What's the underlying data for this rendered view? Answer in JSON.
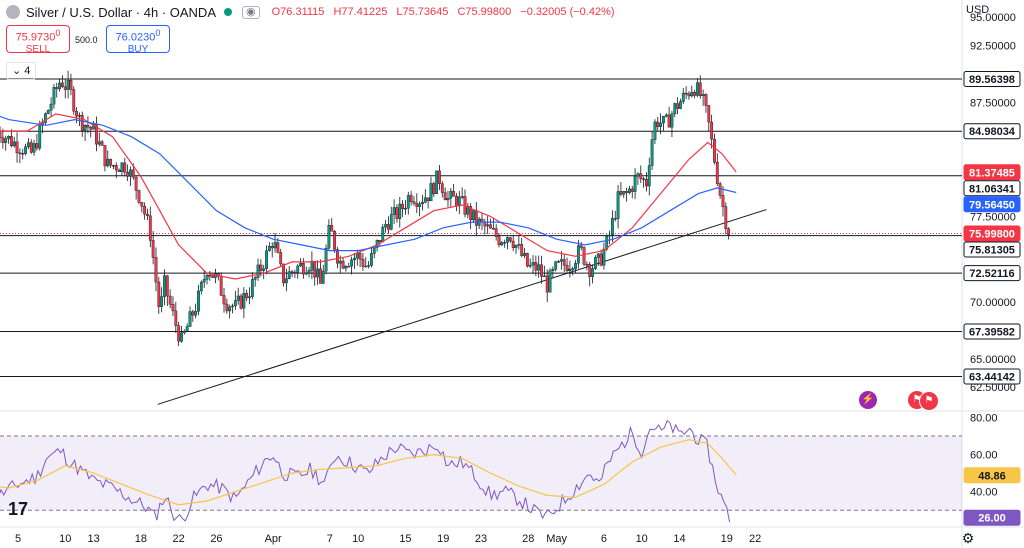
{
  "header": {
    "title": "Silver / U.S. Dollar · 4h · OANDA",
    "open": "O76.31115",
    "high": "H77.41225",
    "low": "L75.73645",
    "close": "C75.99800",
    "change": "−0.32005 (−0.42%)",
    "eye_icon": "eye-icon"
  },
  "trade": {
    "sell_price": "75.9730",
    "sell_price_sup": "0",
    "sell_label": "SELL",
    "quantity": "500.0",
    "buy_price": "76.0230",
    "buy_price_sup": "0",
    "buy_label": "BUY"
  },
  "indicators_toggle": "4",
  "currency": "USD",
  "colors": {
    "up": "#089981",
    "down": "#f23645",
    "ma_fast": "#f23645",
    "ma_slow": "#2962ff",
    "rsi": "#7e57c2",
    "rsi_ma": "#f7c548",
    "level": "#131722"
  },
  "chart_data": [
    {
      "type": "candlestick",
      "title": "Silver / U.S. Dollar · 4h · OANDA",
      "ylim": [
        60.5,
        96.5
      ],
      "y_ticks": [
        "95.00000",
        "92.50000",
        "87.50000",
        "77.50000",
        "70.00000",
        "65.00000",
        "62.50000"
      ],
      "x_ticks": [
        {
          "label": "5",
          "day": 5
        },
        {
          "label": "10",
          "day": 10
        },
        {
          "label": "13",
          "day": 13
        },
        {
          "label": "18",
          "day": 18
        },
        {
          "label": "22",
          "day": 22
        },
        {
          "label": "26",
          "day": 26
        },
        {
          "label": "Apr",
          "day": 32
        },
        {
          "label": "7",
          "day": 38
        },
        {
          "label": "10",
          "day": 41
        },
        {
          "label": "15",
          "day": 46
        },
        {
          "label": "19",
          "day": 50
        },
        {
          "label": "23",
          "day": 54
        },
        {
          "label": "28",
          "day": 59
        },
        {
          "label": "May",
          "day": 62
        },
        {
          "label": "6",
          "day": 67
        },
        {
          "label": "10",
          "day": 71
        },
        {
          "label": "14",
          "day": 75
        },
        {
          "label": "19",
          "day": 80
        },
        {
          "label": "22",
          "day": 83
        }
      ],
      "horizontal_levels": [
        89.56398,
        84.98034,
        81.06341,
        75.81305,
        72.52116,
        67.39582,
        63.44142
      ],
      "current_price_line": 75.998,
      "price_labels": [
        {
          "text": "89.56398",
          "value": 89.56398,
          "kind": "level"
        },
        {
          "text": "84.98034",
          "value": 84.98034,
          "kind": "level"
        },
        {
          "text": "81.37485",
          "value": 81.37485,
          "kind": "ma_fast"
        },
        {
          "text": "81.06341",
          "value": 81.06341,
          "kind": "level"
        },
        {
          "text": "79.56450",
          "value": 79.5645,
          "kind": "ma_slow"
        },
        {
          "text": "75.99800",
          "value": 75.998,
          "kind": "current"
        },
        {
          "text": "75.81305",
          "value": 75.81305,
          "kind": "level"
        },
        {
          "text": "72.52116",
          "value": 72.52116,
          "kind": "level"
        },
        {
          "text": "67.39582",
          "value": 67.39582,
          "kind": "level"
        },
        {
          "text": "63.44142",
          "value": 63.44142,
          "kind": "level"
        }
      ],
      "trendline": [
        {
          "day": 19.8,
          "value": 61.0
        },
        {
          "day": 84.2,
          "value": 78.1
        }
      ],
      "price_path": [
        [
          2.8,
          85.0
        ],
        [
          4.5,
          84.0
        ],
        [
          6.5,
          83.0
        ],
        [
          8.0,
          86.5
        ],
        [
          9.5,
          89.5
        ],
        [
          10.5,
          88.5
        ],
        [
          11.5,
          86.0
        ],
        [
          13.0,
          85.0
        ],
        [
          14.5,
          82.0
        ],
        [
          16.5,
          82.0
        ],
        [
          18.0,
          79.0
        ],
        [
          19.0,
          76.0
        ],
        [
          20.0,
          69.0
        ],
        [
          20.5,
          71.5
        ],
        [
          21.5,
          68.5
        ],
        [
          22.3,
          66.5
        ],
        [
          23.0,
          68.0
        ],
        [
          24.0,
          70.0
        ],
        [
          25.0,
          73.0
        ],
        [
          26.0,
          72.0
        ],
        [
          27.0,
          70.0
        ],
        [
          28.0,
          69.5
        ],
        [
          29.5,
          71.0
        ],
        [
          31.0,
          73.5
        ],
        [
          32.0,
          75.5
        ],
        [
          33.0,
          72.0
        ],
        [
          34.5,
          73.0
        ],
        [
          36.0,
          73.5
        ],
        [
          37.0,
          71.5
        ],
        [
          38.0,
          76.5
        ],
        [
          39.0,
          73.5
        ],
        [
          41.0,
          74.0
        ],
        [
          42.0,
          73.0
        ],
        [
          43.0,
          75.0
        ],
        [
          44.0,
          77.0
        ],
        [
          45.5,
          78.0
        ],
        [
          46.5,
          79.5
        ],
        [
          47.5,
          79.0
        ],
        [
          48.5,
          79.5
        ],
        [
          49.5,
          81.0
        ],
        [
          50.5,
          79.0
        ],
        [
          51.5,
          79.0
        ],
        [
          52.5,
          78.0
        ],
        [
          53.5,
          77.0
        ],
        [
          54.5,
          76.5
        ],
        [
          56.0,
          75.5
        ],
        [
          57.0,
          76.0
        ],
        [
          58.0,
          74.5
        ],
        [
          59.0,
          73.0
        ],
        [
          60.0,
          73.0
        ],
        [
          61.0,
          71.5
        ],
        [
          62.0,
          73.0
        ],
        [
          63.5,
          73.5
        ],
        [
          64.5,
          74.5
        ],
        [
          65.5,
          73.0
        ],
        [
          66.5,
          73.5
        ],
        [
          67.5,
          75.5
        ],
        [
          68.5,
          79.0
        ],
        [
          69.5,
          79.5
        ],
        [
          70.5,
          81.0
        ],
        [
          71.5,
          80.5
        ],
        [
          72.0,
          84.0
        ],
        [
          72.5,
          86.0
        ],
        [
          73.5,
          85.5
        ],
        [
          74.5,
          87.0
        ],
        [
          75.5,
          88.0
        ],
        [
          76.5,
          89.0
        ],
        [
          77.3,
          88.0
        ],
        [
          78.0,
          86.0
        ],
        [
          78.6,
          83.0
        ],
        [
          79.2,
          80.0
        ],
        [
          79.8,
          77.5
        ],
        [
          80.3,
          76.0
        ]
      ],
      "ma_fast": [
        [
          0.8,
          86.0
        ],
        [
          3,
          85.0
        ],
        [
          6,
          85.0
        ],
        [
          9,
          86.5
        ],
        [
          12,
          86.0
        ],
        [
          15,
          84.5
        ],
        [
          18,
          81.0
        ],
        [
          20,
          78.0
        ],
        [
          22,
          75.0
        ],
        [
          25,
          72.5
        ],
        [
          28,
          72.0
        ],
        [
          31,
          72.5
        ],
        [
          34,
          73.5
        ],
        [
          37,
          73.5
        ],
        [
          40,
          74.0
        ],
        [
          43,
          75.0
        ],
        [
          46,
          76.5
        ],
        [
          49,
          78.0
        ],
        [
          52,
          78.5
        ],
        [
          55,
          77.5
        ],
        [
          58,
          76.0
        ],
        [
          61,
          74.5
        ],
        [
          64,
          74.0
        ],
        [
          67,
          74.5
        ],
        [
          70,
          76.5
        ],
        [
          73,
          79.5
        ],
        [
          76,
          82.5
        ],
        [
          78,
          84.0
        ],
        [
          79.5,
          83.0
        ],
        [
          81,
          81.4
        ]
      ],
      "ma_slow": [
        [
          0.8,
          87.0
        ],
        [
          4,
          86.0
        ],
        [
          8,
          85.5
        ],
        [
          11,
          86.0
        ],
        [
          14,
          85.5
        ],
        [
          17,
          84.5
        ],
        [
          20,
          83.0
        ],
        [
          23,
          80.5
        ],
        [
          26,
          78.0
        ],
        [
          29,
          76.5
        ],
        [
          32,
          75.5
        ],
        [
          35,
          75.0
        ],
        [
          38,
          74.5
        ],
        [
          41,
          74.5
        ],
        [
          44,
          75.0
        ],
        [
          47,
          75.5
        ],
        [
          50,
          76.5
        ],
        [
          53,
          77.0
        ],
        [
          56,
          77.0
        ],
        [
          59,
          76.5
        ],
        [
          62,
          75.5
        ],
        [
          65,
          75.0
        ],
        [
          68,
          75.5
        ],
        [
          71,
          76.5
        ],
        [
          74,
          78.0
        ],
        [
          77,
          79.5
        ],
        [
          79,
          80.0
        ],
        [
          81,
          79.6
        ]
      ]
    },
    {
      "type": "line",
      "name": "RSI",
      "ylim": [
        21,
        84
      ],
      "y_ticks": [
        "80.00",
        "60.00",
        "40.00"
      ],
      "band": [
        30,
        70
      ],
      "labels": [
        {
          "text": "48.86",
          "value": 48.86,
          "kind": "rsi_ma"
        },
        {
          "text": "26.00",
          "value": 26.0,
          "kind": "rsi"
        }
      ],
      "rsi_path": [
        [
          0.8,
          40
        ],
        [
          3,
          38
        ],
        [
          5,
          44
        ],
        [
          7,
          48
        ],
        [
          8,
          58
        ],
        [
          9.5,
          62
        ],
        [
          10.5,
          56
        ],
        [
          12,
          50
        ],
        [
          13,
          46
        ],
        [
          15,
          42
        ],
        [
          17,
          36
        ],
        [
          18.5,
          32
        ],
        [
          19.5,
          26
        ],
        [
          20.5,
          38
        ],
        [
          21.5,
          28
        ],
        [
          22.3,
          24
        ],
        [
          23.5,
          36
        ],
        [
          25,
          44
        ],
        [
          26.5,
          42
        ],
        [
          28,
          36
        ],
        [
          29.5,
          46
        ],
        [
          31,
          56
        ],
        [
          32,
          60
        ],
        [
          33,
          50
        ],
        [
          34.5,
          48
        ],
        [
          36,
          52
        ],
        [
          37.5,
          44
        ],
        [
          38.5,
          60
        ],
        [
          40,
          56
        ],
        [
          42,
          50
        ],
        [
          43.5,
          58
        ],
        [
          45,
          64
        ],
        [
          46.5,
          60
        ],
        [
          48,
          62
        ],
        [
          49.5,
          66
        ],
        [
          50.5,
          54
        ],
        [
          52,
          56
        ],
        [
          53.5,
          48
        ],
        [
          55,
          38
        ],
        [
          56.5,
          40
        ],
        [
          58,
          36
        ],
        [
          59.5,
          30
        ],
        [
          61,
          26
        ],
        [
          62.5,
          34
        ],
        [
          64,
          42
        ],
        [
          65.5,
          50
        ],
        [
          66.5,
          44
        ],
        [
          67.5,
          56
        ],
        [
          69,
          66
        ],
        [
          70,
          72
        ],
        [
          71,
          62
        ],
        [
          72,
          76
        ],
        [
          73,
          72
        ],
        [
          74,
          76
        ],
        [
          75,
          70
        ],
        [
          76,
          74
        ],
        [
          77,
          68
        ],
        [
          78,
          64
        ],
        [
          78.6,
          50
        ],
        [
          79.2,
          40
        ],
        [
          79.8,
          32
        ],
        [
          80.3,
          26
        ]
      ],
      "rsi_ma_path": [
        [
          0.8,
          44
        ],
        [
          4,
          42
        ],
        [
          7,
          46
        ],
        [
          10,
          54
        ],
        [
          13,
          50
        ],
        [
          16,
          44
        ],
        [
          19,
          38
        ],
        [
          22,
          33
        ],
        [
          25,
          35
        ],
        [
          28,
          40
        ],
        [
          31,
          45
        ],
        [
          34,
          50
        ],
        [
          37,
          52
        ],
        [
          40,
          53
        ],
        [
          43,
          54
        ],
        [
          46,
          58
        ],
        [
          49,
          60
        ],
        [
          52,
          58
        ],
        [
          55,
          50
        ],
        [
          58,
          43
        ],
        [
          61,
          38
        ],
        [
          64,
          37
        ],
        [
          67,
          44
        ],
        [
          70,
          56
        ],
        [
          73,
          64
        ],
        [
          76,
          68
        ],
        [
          78,
          66
        ],
        [
          79.5,
          58
        ],
        [
          81,
          49
        ]
      ]
    }
  ]
}
